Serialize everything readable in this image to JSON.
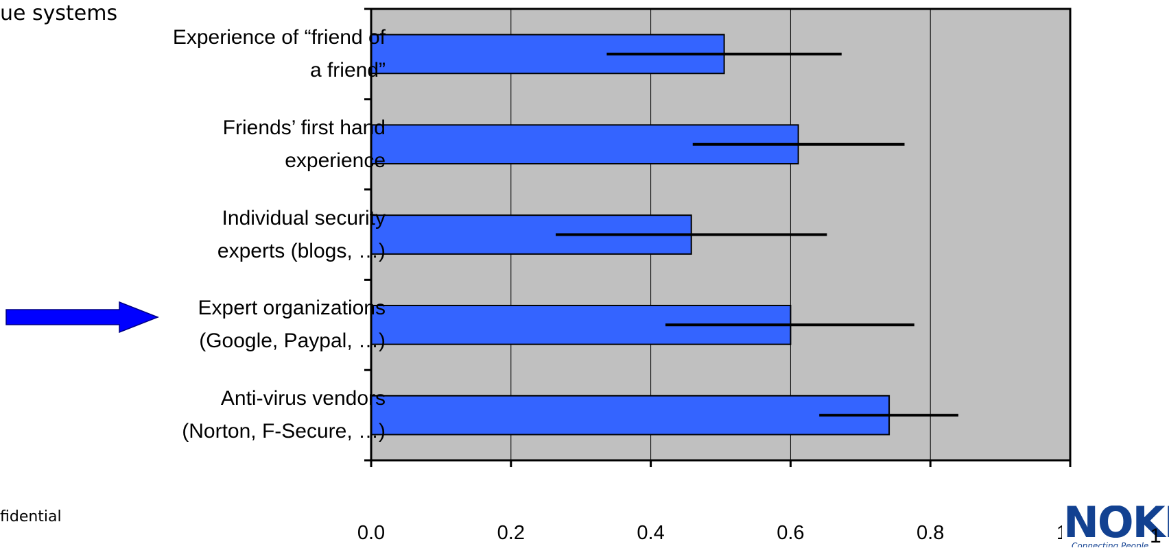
{
  "slide": {
    "title": "ue systems",
    "footer": "fidential",
    "page_number": "1",
    "logo": {
      "name": "nokia-logo",
      "text": "NOKIA",
      "tagline": "Connecting People"
    }
  },
  "colors": {
    "bar": "#3464FF",
    "plot_background": "#C0C0C0",
    "arrow": "#0000FF",
    "logo": "#124191"
  },
  "chart_data": {
    "type": "bar",
    "orientation": "horizontal",
    "categories": [
      "Experience of “friend of a friend”",
      "Friends’ first hand experience",
      "Individual security experts (blogs, …)",
      "Expert organizations (Google, Paypal, …)",
      "Anti-virus vendors (Norton, F-Secure, …)"
    ],
    "category_lines": [
      [
        "Experience of “friend of",
        "a friend”"
      ],
      [
        "Friends’ first hand",
        "experience"
      ],
      [
        "Individual security",
        "experts (blogs, …)"
      ],
      [
        "Expert organizations",
        "(Google, Paypal, …)"
      ],
      [
        "Anti-virus vendors",
        "(Norton, F-Secure, …)"
      ]
    ],
    "values": [
      0.505,
      0.611,
      0.458,
      0.6,
      0.741
    ],
    "error_bars": [
      {
        "low": 0.337,
        "high": 0.673
      },
      {
        "low": 0.46,
        "high": 0.763
      },
      {
        "low": 0.264,
        "high": 0.652
      },
      {
        "low": 0.421,
        "high": 0.777
      },
      {
        "low": 0.641,
        "high": 0.84
      }
    ],
    "x_ticks": [
      "0.0",
      "0.2",
      "0.4",
      "0.6",
      "0.8",
      "1.0"
    ],
    "xlim": [
      0,
      1.0
    ],
    "xlabel": "",
    "ylabel": "",
    "grid": "vertical",
    "legend": "none",
    "highlighted_category": "Expert organizations (Google, Paypal, …)"
  }
}
